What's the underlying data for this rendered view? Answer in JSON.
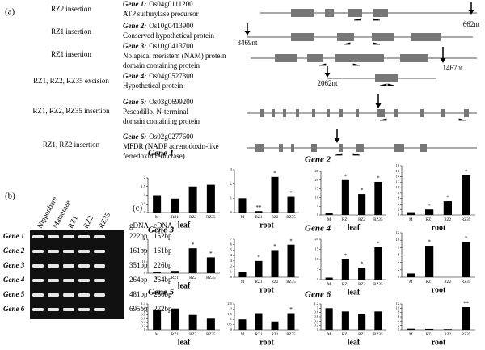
{
  "panel_a": {
    "label": "(a)",
    "rows": [
      {
        "event": "RZ2 insertion",
        "gene": "Gene 1:",
        "id": "Os04g0111200",
        "description": [
          "ATP sulfurylase precursor"
        ],
        "position": "662nt"
      },
      {
        "event": "RZ1 insertion",
        "gene": "Gene 2:",
        "id": "Os10g0413900",
        "description": [
          "Conserved hypothetical protein"
        ],
        "position": "3469nt"
      },
      {
        "event": "RZ1 insertion",
        "gene": "Gene 3:",
        "id": "Os10g0413700",
        "description": [
          "No apical meristem (NAM) protein",
          "domain containing protein"
        ],
        "position": "1467nt"
      },
      {
        "event": "RZ1, RZ2, RZ35 excision",
        "gene": "Gene 4:",
        "id": "Os04g0527300",
        "description": [
          "Hypothetical protein"
        ],
        "position": "2062nt"
      },
      {
        "event": "RZ1, RZ2, RZ35 insertion",
        "gene": "Gene 5:",
        "id": "Os03g0699200",
        "description": [
          "Pescadillo, N-terminal",
          "domain containing protein"
        ]
      },
      {
        "event": "RZ1, RZ2 insertion",
        "gene": "Gene 6:",
        "id": "Os02g0277600",
        "description": [
          "MFDR (NADP adrenodoxin-like",
          "ferredoxin reductase)"
        ]
      }
    ]
  },
  "panel_b": {
    "label": "(b)",
    "lanes": [
      "Nipponbare",
      "Matsumae",
      "RZ1",
      "RZ2",
      "RZ35"
    ],
    "size_headers": [
      "gDNA",
      "cDNA"
    ],
    "rows": [
      {
        "gene": "Gene 1",
        "gDNA": "222bp",
        "cDNA": "152bp"
      },
      {
        "gene": "Gene 2",
        "gDNA": "161bp",
        "cDNA": "161bp"
      },
      {
        "gene": "Gene 3",
        "gDNA": "351bp",
        "cDNA": "226bp"
      },
      {
        "gene": "Gene 4",
        "gDNA": "264bp",
        "cDNA": "264bp"
      },
      {
        "gene": "Gene 5",
        "gDNA": "481bp",
        "cDNA": "266bp"
      },
      {
        "gene": "Gene 6",
        "gDNA": "695bp",
        "cDNA": "272bp"
      }
    ]
  },
  "panel_c": {
    "label": "(c)"
  },
  "chart_data": [
    {
      "type": "bar",
      "title": "Gene 1",
      "x_label": "leaf",
      "categories": [
        "M",
        "RZ1",
        "RZ2",
        "RZ35"
      ],
      "values": [
        1,
        0.8,
        1.5,
        1.6
      ],
      "color": "#000000",
      "ylim": [
        0,
        2
      ],
      "yticks": [
        0,
        0.5,
        1,
        1.5,
        2
      ],
      "annotations": []
    },
    {
      "type": "bar",
      "x_label": "root",
      "categories": [
        "M",
        "RZ1",
        "RZ2",
        "RZ35"
      ],
      "values": [
        1,
        0.1,
        2.5,
        1.1
      ],
      "color": "#000000",
      "ylim": [
        0,
        3
      ],
      "yticks": [
        0,
        1,
        2,
        3
      ],
      "annotations": [
        {
          "category": "RZ1",
          "label": "**"
        },
        {
          "category": "RZ2",
          "label": "*"
        },
        {
          "category": "RZ35",
          "label": "*"
        }
      ]
    },
    {
      "type": "bar",
      "title": "Gene 2",
      "x_label": "leaf",
      "categories": [
        "M",
        "RZ1",
        "RZ2",
        "RZ35"
      ],
      "values": [
        1,
        20,
        12,
        19
      ],
      "color": "#000000",
      "ylim": [
        0,
        25
      ],
      "yticks": [
        0,
        5,
        10,
        15,
        20,
        25
      ],
      "annotations": [
        {
          "category": "RZ1",
          "label": "*"
        },
        {
          "category": "RZ2",
          "label": "*"
        },
        {
          "category": "RZ35",
          "label": "*"
        }
      ]
    },
    {
      "type": "bar",
      "x_label": "root",
      "categories": [
        "M",
        "RZ1",
        "RZ2",
        "RZ35"
      ],
      "values": [
        1,
        2,
        5,
        14.5
      ],
      "color": "#000000",
      "ylim": [
        0,
        18
      ],
      "yticks": [
        0,
        2,
        4,
        6,
        8,
        10,
        12,
        14,
        16,
        18
      ],
      "annotations": [
        {
          "category": "RZ1",
          "label": "*"
        },
        {
          "category": "RZ2",
          "label": "*"
        },
        {
          "category": "RZ35",
          "label": "*"
        }
      ]
    },
    {
      "type": "bar",
      "title": "Gene 3",
      "x_label": "leaf",
      "categories": [
        "M",
        "RZ1",
        "RZ2",
        "RZ35"
      ],
      "values": [
        1,
        2,
        22,
        14
      ],
      "color": "#000000",
      "ylim": [
        0,
        30
      ],
      "yticks": [
        0,
        10,
        20,
        30
      ],
      "annotations": [
        {
          "category": "RZ2",
          "label": "*"
        },
        {
          "category": "RZ35",
          "label": "*"
        }
      ]
    },
    {
      "type": "bar",
      "x_label": "root",
      "categories": [
        "M",
        "RZ1",
        "RZ2",
        "RZ35"
      ],
      "values": [
        1,
        3,
        5,
        6
      ],
      "color": "#000000",
      "ylim": [
        0,
        7
      ],
      "yticks": [
        0,
        1,
        2,
        3,
        4,
        5,
        6,
        7
      ],
      "annotations": [
        {
          "category": "RZ1",
          "label": "*"
        },
        {
          "category": "RZ2",
          "label": "*"
        },
        {
          "category": "RZ35",
          "label": "*"
        }
      ]
    },
    {
      "type": "bar",
      "title": "Gene 4",
      "x_label": "leaf",
      "categories": [
        "M",
        "RZ1",
        "RZ2",
        "RZ35"
      ],
      "values": [
        1,
        10,
        6,
        16
      ],
      "color": "#000000",
      "ylim": [
        0,
        20
      ],
      "yticks": [
        0,
        5,
        10,
        15,
        20
      ],
      "annotations": [
        {
          "category": "RZ1",
          "label": "*"
        },
        {
          "category": "RZ2",
          "label": "*"
        },
        {
          "category": "RZ35",
          "label": "*"
        }
      ]
    },
    {
      "type": "bar",
      "x_label": "root",
      "categories": [
        "M",
        "RZ1",
        "RZ2",
        "RZ35"
      ],
      "values": [
        1,
        8.5,
        0,
        9.5
      ],
      "color": "#000000",
      "ylim": [
        0,
        12
      ],
      "yticks": [
        0,
        2,
        4,
        6,
        8,
        10,
        12
      ],
      "annotations": [
        {
          "category": "RZ1",
          "label": "*"
        },
        {
          "category": "RZ35",
          "label": "*"
        }
      ]
    },
    {
      "type": "bar",
      "title": "Gene 5",
      "x_label": "leaf",
      "categories": [
        "M",
        "RZ1",
        "RZ2",
        "RZ35"
      ],
      "values": [
        1.1,
        1.15,
        0.8,
        0.6
      ],
      "color": "#000000",
      "ylim": [
        0,
        1.4
      ],
      "yticks": [
        0,
        0.2,
        0.4,
        0.6,
        0.8,
        1,
        1.2,
        1.4
      ],
      "annotations": []
    },
    {
      "type": "bar",
      "x_label": "root",
      "categories": [
        "M",
        "RZ1",
        "RZ2",
        "RZ35"
      ],
      "values": [
        1,
        1.6,
        0.8,
        1.6
      ],
      "color": "#000000",
      "ylim": [
        0,
        2.5
      ],
      "yticks": [
        0,
        0.5,
        1,
        1.5,
        2,
        2.5
      ],
      "annotations": [
        {
          "category": "RZ35",
          "label": "*"
        }
      ]
    },
    {
      "type": "bar",
      "title": "Gene 6",
      "x_label": "leaf",
      "categories": [
        "M",
        "RZ1",
        "RZ2",
        "RZ35"
      ],
      "values": [
        1,
        0.85,
        0.75,
        0.85
      ],
      "color": "#000000",
      "ylim": [
        0,
        1.2
      ],
      "yticks": [
        0,
        0.2,
        0.4,
        0.6,
        0.8,
        1,
        1.2
      ],
      "annotations": []
    },
    {
      "type": "bar",
      "x_label": "root",
      "categories": [
        "M",
        "RZ1",
        "RZ2",
        "RZ35"
      ],
      "values": [
        0.5,
        0.4,
        0.3,
        10.5
      ],
      "color": "#000000",
      "ylim": [
        0,
        12
      ],
      "yticks": [
        0,
        2,
        4,
        6,
        8,
        10,
        12
      ],
      "annotations": [
        {
          "category": "RZ35",
          "label": "**"
        }
      ]
    }
  ]
}
